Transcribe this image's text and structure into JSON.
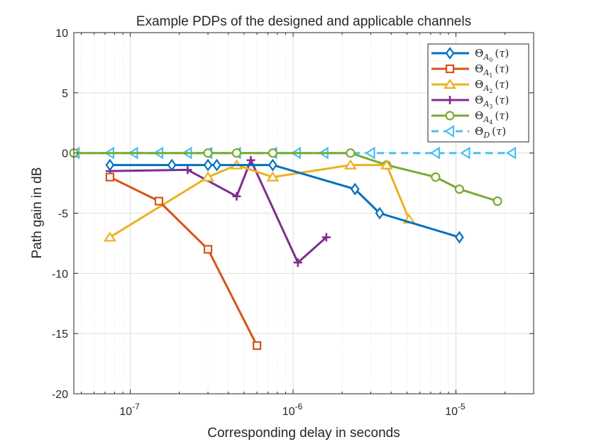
{
  "chart_data": {
    "type": "line",
    "title": "Example PDPs of the designed and applicable channels",
    "xlabel": "Corresponding delay in seconds",
    "ylabel": "Path gain in dB",
    "xscale": "log",
    "xlim": [
      4.5e-08,
      3e-05
    ],
    "ylim": [
      -20,
      10
    ],
    "yticks": [
      -20,
      -15,
      -10,
      -5,
      0,
      5,
      10
    ],
    "ytick_labels": [
      "-20",
      "-15",
      "-10",
      "-5",
      "0",
      "5",
      "10"
    ],
    "xtick_labels": [
      {
        "base": "10",
        "exp": "-7"
      },
      {
        "base": "10",
        "exp": "-6"
      },
      {
        "base": "10",
        "exp": "-5"
      }
    ],
    "xtick_values": [
      1e-07,
      1e-06,
      1e-05
    ],
    "grid": true,
    "minor_grid": true,
    "legend_position": "top-right",
    "series": [
      {
        "name": "Θ_{A0}(τ)",
        "label_main": "Θ",
        "label_sub": "A",
        "label_subsub": "0",
        "color": "#0072BD",
        "marker": "diamond",
        "dashed": false,
        "x": [
          7.5e-08,
          1.8e-07,
          3e-07,
          3.4e-07,
          7.5e-07,
          2.4e-06,
          3.4e-06,
          1.05e-05
        ],
        "y": [
          -1,
          -1,
          -1,
          -1,
          -1,
          -3,
          -5,
          -7
        ]
      },
      {
        "name": "Θ_{A1}(τ)",
        "label_main": "Θ",
        "label_sub": "A",
        "label_subsub": "1",
        "color": "#D95319",
        "marker": "square",
        "dashed": false,
        "x": [
          7.5e-08,
          1.5e-07,
          3e-07,
          6e-07
        ],
        "y": [
          -2,
          -4,
          -8,
          -16
        ]
      },
      {
        "name": "Θ_{A2}(τ)",
        "label_main": "Θ",
        "label_sub": "A",
        "label_subsub": "2",
        "color": "#EDB120",
        "marker": "triangle-up",
        "dashed": false,
        "x": [
          7.5e-08,
          3e-07,
          4.5e-07,
          7.5e-07,
          2.25e-06,
          3.75e-06,
          5.15e-06
        ],
        "y": [
          -7,
          -2,
          -1,
          -2,
          -1,
          -1,
          -5.5
        ]
      },
      {
        "name": "Θ_{A3}(τ)",
        "label_main": "Θ",
        "label_sub": "A",
        "label_subsub": "3",
        "color": "#7E2F8E",
        "marker": "plus",
        "dashed": false,
        "x": [
          7.5e-08,
          2.25e-07,
          4.5e-07,
          5.5e-07,
          1.07e-06,
          1.6e-06
        ],
        "y": [
          -1.5,
          -1.4,
          -3.6,
          -0.6,
          -9.1,
          -7
        ]
      },
      {
        "name": "Θ_{A4}(τ)",
        "label_main": "Θ",
        "label_sub": "A",
        "label_subsub": "4",
        "color": "#77AC30",
        "marker": "circle",
        "dashed": false,
        "x": [
          4.5e-08,
          3e-07,
          4.5e-07,
          7.5e-07,
          2.25e-06,
          3.75e-06,
          7.5e-06,
          1.05e-05,
          1.8e-05
        ],
        "y": [
          0,
          0,
          0,
          0,
          0,
          -1,
          -2,
          -3,
          -4
        ]
      },
      {
        "name": "Θ_D(τ)",
        "label_main": "Θ",
        "label_sub": "D",
        "label_subsub": "",
        "color": "#4DBEEE",
        "marker": "triangle-left",
        "dashed": true,
        "x": [
          4.6e-08,
          7.5e-08,
          1.05e-07,
          1.5e-07,
          2.25e-07,
          3e-07,
          4.5e-07,
          7.5e-07,
          1.05e-06,
          1.55e-06,
          3e-06,
          7.5e-06,
          1.15e-05,
          2.2e-05
        ],
        "y": [
          0,
          0,
          0,
          0,
          0,
          0,
          0,
          0,
          0,
          0,
          0,
          0,
          0,
          0
        ]
      }
    ]
  }
}
